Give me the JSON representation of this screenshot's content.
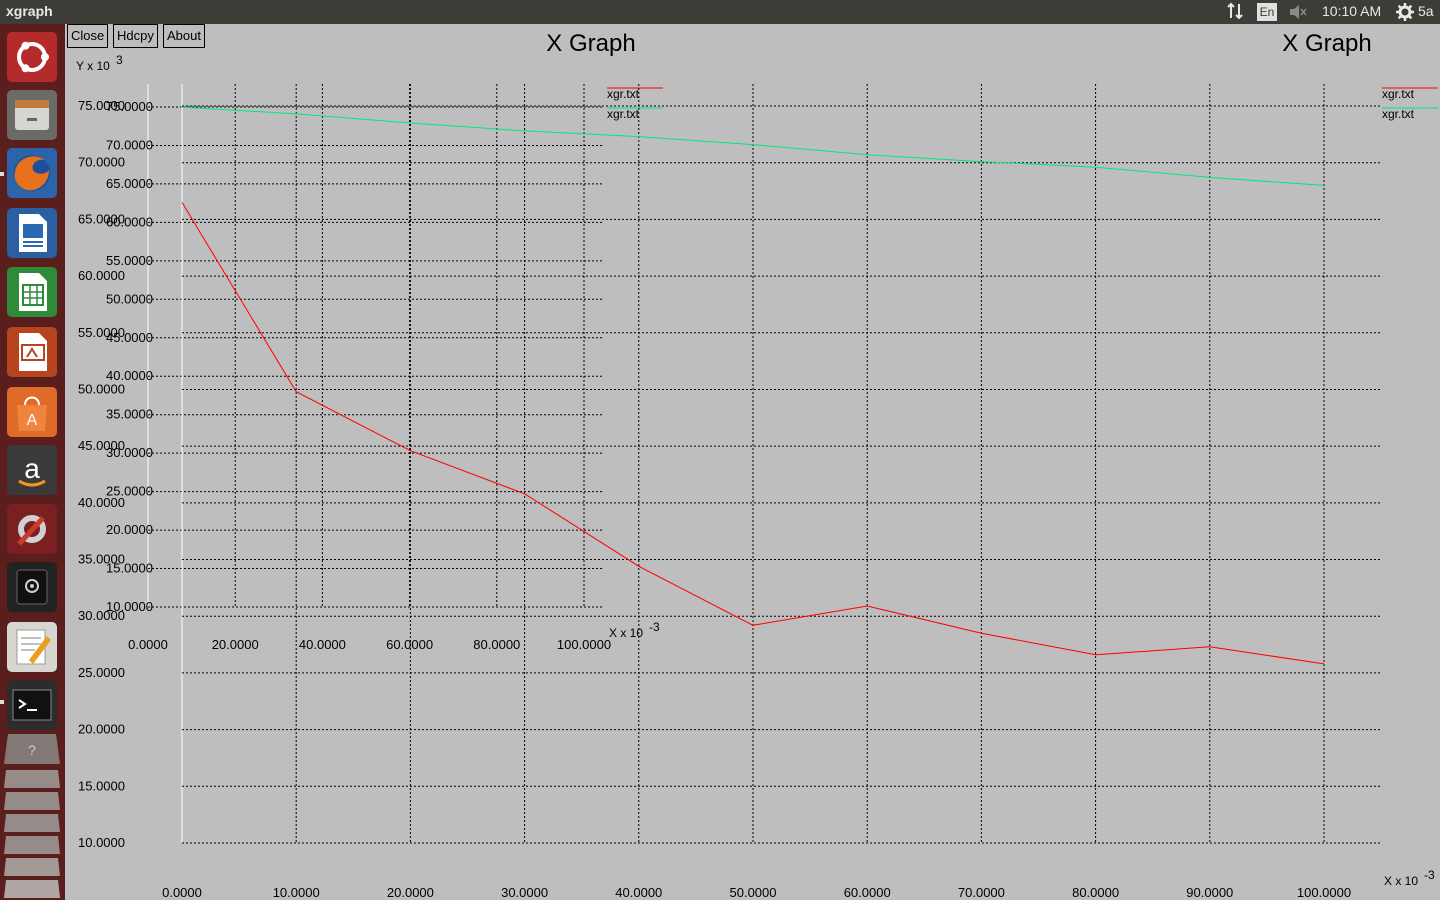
{
  "topbar": {
    "app_title": "xgraph",
    "keyboard_layout": "En",
    "clock": "10:10 AM",
    "user_label": "5a"
  },
  "launcher": {
    "items": [
      "dash-home",
      "files",
      "firefox",
      "libreoffice-writer",
      "libreoffice-calc",
      "libreoffice-impress",
      "ubuntu-software-center",
      "amazon",
      "system-settings",
      "screenshot-tool",
      "text-editor",
      "terminal"
    ]
  },
  "toolbar": {
    "close_label": "Close",
    "hardcopy_label": "Hdcpy",
    "about_label": "About"
  },
  "chart_data": [
    {
      "type": "line",
      "title": "X Graph",
      "ylabel": "Y x 10",
      "ylabel_exp": "3",
      "xlabel": "X x 10",
      "xlabel_exp": "-3",
      "x_ticks": [
        "0.0000",
        "20.0000",
        "40.0000",
        "60.0000",
        "80.0000",
        "100.0000"
      ],
      "y_ticks": [
        "10.0000",
        "15.0000",
        "20.0000",
        "25.0000",
        "30.0000",
        "35.0000",
        "40.0000",
        "45.0000",
        "50.0000",
        "55.0000",
        "60.0000",
        "65.0000",
        "70.0000",
        "75.0000"
      ],
      "xlim": [
        0,
        100
      ],
      "ylim": [
        10,
        75
      ],
      "grid": true,
      "legend_position": "top-right",
      "series": [
        {
          "name": "xgr.txt",
          "color": "#ff0000"
        },
        {
          "name": "xgr.txt",
          "color": "#00e87a"
        }
      ]
    },
    {
      "type": "line",
      "title": "X Graph",
      "ylabel": "Y x 10",
      "ylabel_exp": "3",
      "xlabel": "X x 10",
      "xlabel_exp": "-3",
      "x_ticks": [
        "0.0000",
        "10.0000",
        "20.0000",
        "30.0000",
        "40.0000",
        "50.0000",
        "60.0000",
        "70.0000",
        "80.0000",
        "90.0000",
        "100.0000"
      ],
      "y_ticks": [
        "10.0000",
        "15.0000",
        "20.0000",
        "25.0000",
        "30.0000",
        "35.0000",
        "40.0000",
        "45.0000",
        "50.0000",
        "55.0000",
        "60.0000",
        "65.0000",
        "70.0000",
        "75.0000"
      ],
      "xlim": [
        0,
        100
      ],
      "ylim": [
        10,
        75
      ],
      "grid": true,
      "legend_position": "top-right",
      "series": [
        {
          "name": "xgr.txt",
          "color": "#ff0000",
          "x": [
            0,
            10,
            20,
            30,
            40,
            50,
            60,
            70,
            80,
            90,
            100
          ],
          "y": [
            66.5,
            49.8,
            44.6,
            40.8,
            34.4,
            29.2,
            30.9,
            28.5,
            26.6,
            27.3,
            25.8
          ]
        },
        {
          "name": "xgr.txt",
          "color": "#00e87a",
          "x": [
            0,
            10,
            20,
            30,
            40,
            50,
            60,
            70,
            80,
            90,
            100
          ],
          "y": [
            74.9,
            74.3,
            73.5,
            72.8,
            72.3,
            71.6,
            70.7,
            70.1,
            69.6,
            68.7,
            68.0
          ]
        }
      ]
    }
  ]
}
